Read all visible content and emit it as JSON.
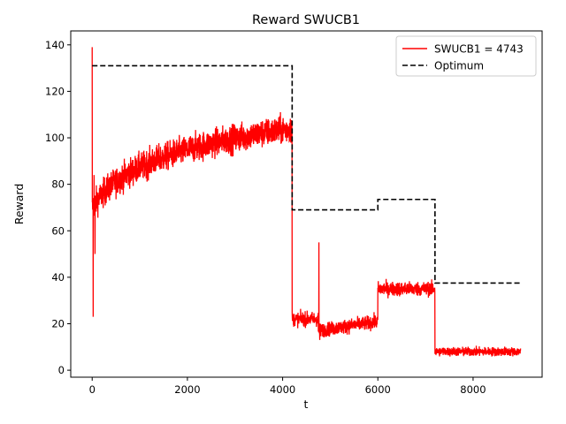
{
  "chart_data": {
    "type": "line",
    "title": "Reward SWUCB1",
    "xlabel": "t",
    "ylabel": "Reward",
    "xlim": [
      -450,
      9450
    ],
    "ylim": [
      -3,
      146
    ],
    "xticks": [
      0,
      2000,
      4000,
      6000,
      8000
    ],
    "yticks": [
      0,
      20,
      40,
      60,
      80,
      100,
      120,
      140
    ],
    "legend_position": "top-right",
    "series": [
      {
        "name": "SWUCB1 = 4743",
        "color": "#ff0000",
        "style": "solid",
        "noisy": true,
        "segments": [
          {
            "t_start": 0,
            "t_end": 4200,
            "shape": "log",
            "start": 70,
            "end": 104,
            "noise": 5
          },
          {
            "t_start": 4200,
            "t_end": 4750,
            "shape": "flat",
            "start": 22,
            "end": 22,
            "noise": 2.5
          },
          {
            "t_start": 4750,
            "t_end": 6000,
            "shape": "linear",
            "start": 17,
            "end": 21,
            "noise": 2.5
          },
          {
            "t_start": 6000,
            "t_end": 7200,
            "shape": "flat",
            "start": 35,
            "end": 35,
            "noise": 2.5
          },
          {
            "t_start": 7200,
            "t_end": 9000,
            "shape": "flat",
            "start": 8,
            "end": 8,
            "noise": 1.6
          }
        ],
        "spikes": [
          {
            "t": 0,
            "value": 139
          },
          {
            "t": 20,
            "value": 23
          },
          {
            "t": 40,
            "value": 84
          },
          {
            "t": 60,
            "value": 50
          },
          {
            "t": 4762,
            "value": 55
          },
          {
            "t": 4780,
            "value": 13
          }
        ]
      },
      {
        "name": "Optimum",
        "color": "#000000",
        "style": "dashed",
        "steps": [
          {
            "t_start": 0,
            "t_end": 4200,
            "value": 131
          },
          {
            "t_start": 4200,
            "t_end": 6000,
            "value": 69
          },
          {
            "t_start": 6000,
            "t_end": 7200,
            "value": 73.5
          },
          {
            "t_start": 7200,
            "t_end": 9000,
            "value": 37.5
          }
        ]
      }
    ]
  }
}
